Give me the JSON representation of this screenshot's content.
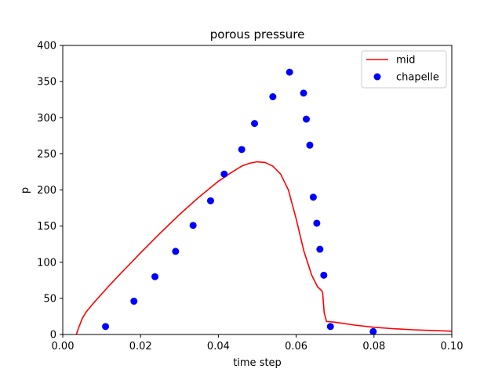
{
  "chart_data": {
    "type": "line",
    "title": "porous pressure",
    "xlabel": "time step",
    "ylabel": "p",
    "xlim": [
      0.0,
      0.1
    ],
    "ylim": [
      0,
      400
    ],
    "x_ticks": [
      "0.00",
      "0.02",
      "0.04",
      "0.06",
      "0.08",
      "0.10"
    ],
    "y_ticks": [
      "0",
      "50",
      "100",
      "150",
      "200",
      "250",
      "300",
      "350",
      "400"
    ],
    "grid": false,
    "legend_position": "top-right",
    "series": [
      {
        "name": "mid",
        "kind": "line",
        "color": "#ff0000",
        "x": [
          0.0035,
          0.004,
          0.005,
          0.006,
          0.008,
          0.01,
          0.012,
          0.015,
          0.02,
          0.025,
          0.03,
          0.035,
          0.04,
          0.043,
          0.046,
          0.048,
          0.05,
          0.052,
          0.054,
          0.056,
          0.058,
          0.06,
          0.062,
          0.064,
          0.0655,
          0.0665,
          0.0668,
          0.0672,
          0.0678,
          0.07,
          0.075,
          0.08,
          0.085,
          0.09,
          0.095,
          0.1
        ],
        "y": [
          0,
          8,
          22,
          31,
          44,
          56,
          68,
          85,
          113,
          140,
          166,
          190,
          212,
          223,
          233,
          237,
          239,
          238,
          233,
          222,
          200,
          160,
          115,
          82,
          66,
          61,
          58,
          30,
          18,
          17,
          13,
          10,
          8,
          6.5,
          5.5,
          4.5
        ]
      },
      {
        "name": "chapelle",
        "kind": "scatter",
        "color": "#0000ff",
        "x": [
          0.011,
          0.0183,
          0.0237,
          0.029,
          0.0335,
          0.038,
          0.0415,
          0.046,
          0.0493,
          0.054,
          0.0583,
          0.0619,
          0.0626,
          0.0635,
          0.0644,
          0.0653,
          0.0661,
          0.0671,
          0.0688,
          0.0798
        ],
        "y": [
          11,
          46,
          80,
          115,
          151,
          185,
          222,
          256,
          292,
          329,
          363,
          334,
          298,
          262,
          190,
          154,
          118,
          82,
          11,
          4
        ]
      }
    ]
  }
}
